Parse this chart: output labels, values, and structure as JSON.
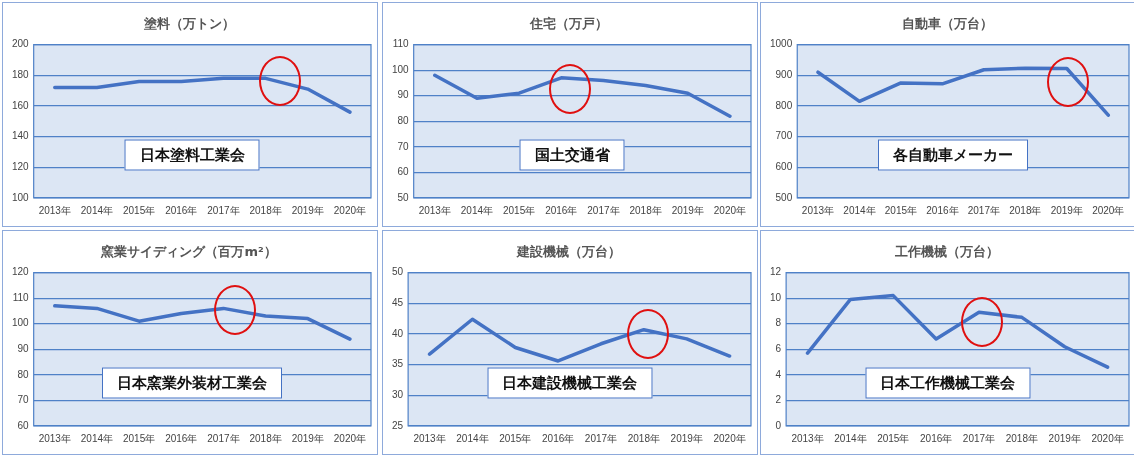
{
  "chart_data": [
    {
      "type": "line",
      "title": "塗料（万トン）",
      "categories": [
        "2013年",
        "2014年",
        "2015年",
        "2016年",
        "2017年",
        "2018年",
        "2019年",
        "2020年"
      ],
      "values": [
        172,
        172,
        176,
        176,
        178,
        178,
        171,
        156
      ],
      "color": "#4472c4",
      "ylim": [
        100,
        200
      ],
      "yticks": [
        100,
        120,
        140,
        160,
        180,
        200
      ],
      "grid": "y",
      "annotations": [
        "日本塗料工業会"
      ]
    },
    {
      "type": "line",
      "title": "住宅（万戸）",
      "categories": [
        "2013年",
        "2014年",
        "2015年",
        "2016年",
        "2017年",
        "2018年",
        "2019年",
        "2020年"
      ],
      "values": [
        98,
        89,
        91,
        97,
        96,
        94,
        91,
        82
      ],
      "color": "#4472c4",
      "ylim": [
        50,
        110
      ],
      "yticks": [
        50,
        60,
        70,
        80,
        90,
        100,
        110
      ],
      "grid": "y",
      "annotations": [
        "国土交通省"
      ]
    },
    {
      "type": "line",
      "title": "自動車（万台）",
      "categories": [
        "2013年",
        "2014年",
        "2015年",
        "2016年",
        "2017年",
        "2018年",
        "2019年",
        "2020年"
      ],
      "values": [
        910,
        815,
        875,
        872,
        918,
        923,
        922,
        770
      ],
      "color": "#4472c4",
      "ylim": [
        500,
        1000
      ],
      "yticks": [
        500,
        600,
        700,
        800,
        900,
        1000
      ],
      "grid": "y",
      "annotations": [
        "各自動車メーカー"
      ]
    },
    {
      "type": "line",
      "title": "窯業サイディング（百万m²）",
      "categories": [
        "2013年",
        "2014年",
        "2015年",
        "2016年",
        "2017年",
        "2018年",
        "2019年",
        "2020年"
      ],
      "values": [
        107,
        106,
        101,
        104,
        106,
        103,
        102,
        94
      ],
      "color": "#4472c4",
      "ylim": [
        60,
        120
      ],
      "yticks": [
        60,
        70,
        80,
        90,
        100,
        110,
        120
      ],
      "grid": "y",
      "annotations": [
        "日本窯業外装材工業会"
      ]
    },
    {
      "type": "line",
      "title": "建設機械（万台）",
      "categories": [
        "2013年",
        "2014年",
        "2015年",
        "2016年",
        "2017年",
        "2018年",
        "2019年",
        "2020年"
      ],
      "values": [
        36.7,
        42.4,
        37.8,
        35.6,
        38.4,
        40.7,
        39.2,
        36.4
      ],
      "color": "#4472c4",
      "ylim": [
        25,
        50
      ],
      "yticks": [
        25,
        30,
        35,
        40,
        45,
        50
      ],
      "grid": "y",
      "annotations": [
        "日本建設機械工業会"
      ]
    },
    {
      "type": "line",
      "title": "工作機械（万台）",
      "categories": [
        "2013年",
        "2014年",
        "2015年",
        "2016年",
        "2017年",
        "2018年",
        "2019年",
        "2020年"
      ],
      "values": [
        5.7,
        9.9,
        10.2,
        6.8,
        8.9,
        8.5,
        6.2,
        4.6
      ],
      "color": "#4472c4",
      "ylim": [
        0,
        12
      ],
      "yticks": [
        0,
        2,
        4,
        6,
        8,
        10,
        12
      ],
      "grid": "y",
      "annotations": [
        "日本工作機械工業会"
      ]
    }
  ]
}
